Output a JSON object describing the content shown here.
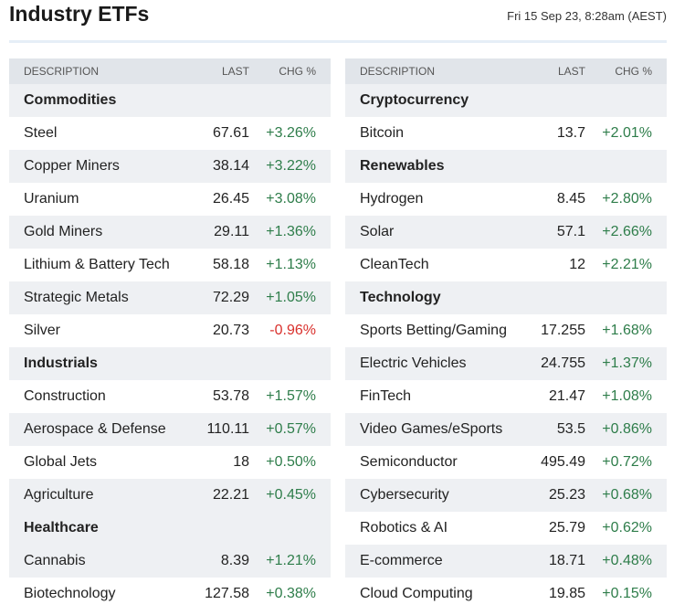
{
  "header": {
    "title": "Industry ETFs",
    "timestamp": "Fri 15 Sep 23, 8:28am (AEST)"
  },
  "tables": [
    {
      "columns": [
        "DESCRIPTION",
        "LAST",
        "CHG %"
      ],
      "sections": [
        {
          "name": "Commodities",
          "rows": [
            [
              "Steel",
              "67.61",
              "+3.26%"
            ],
            [
              "Copper Miners",
              "38.14",
              "+3.22%"
            ],
            [
              "Uranium",
              "26.45",
              "+3.08%"
            ],
            [
              "Gold Miners",
              "29.11",
              "+1.36%"
            ],
            [
              "Lithium & Battery Tech",
              "58.18",
              "+1.13%"
            ],
            [
              "Strategic Metals",
              "72.29",
              "+1.05%"
            ],
            [
              "Silver",
              "20.73",
              "-0.96%"
            ]
          ]
        },
        {
          "name": "Industrials",
          "rows": [
            [
              "Construction",
              "53.78",
              "+1.57%"
            ],
            [
              "Aerospace & Defense",
              "110.11",
              "+0.57%"
            ],
            [
              "Global Jets",
              "18",
              "+0.50%"
            ],
            [
              "Agriculture",
              "22.21",
              "+0.45%"
            ]
          ]
        },
        {
          "name": "Healthcare",
          "rows": [
            [
              "Cannabis",
              "8.39",
              "+1.21%"
            ],
            [
              "Biotechnology",
              "127.58",
              "+0.38%"
            ]
          ]
        }
      ]
    },
    {
      "columns": [
        "DESCRIPTION",
        "LAST",
        "CHG %"
      ],
      "sections": [
        {
          "name": "Cryptocurrency",
          "rows": [
            [
              "Bitcoin",
              "13.7",
              "+2.01%"
            ]
          ]
        },
        {
          "name": "Renewables",
          "rows": [
            [
              "Hydrogen",
              "8.45",
              "+2.80%"
            ],
            [
              "Solar",
              "57.1",
              "+2.66%"
            ],
            [
              "CleanTech",
              "12",
              "+2.21%"
            ]
          ]
        },
        {
          "name": "Technology",
          "rows": [
            [
              "Sports Betting/Gaming",
              "17.255",
              "+1.68%"
            ],
            [
              "Electric Vehicles",
              "24.755",
              "+1.37%"
            ],
            [
              "FinTech",
              "21.47",
              "+1.08%"
            ],
            [
              "Video Games/eSports",
              "53.5",
              "+0.86%"
            ],
            [
              "Semiconductor",
              "495.49",
              "+0.72%"
            ],
            [
              "Cybersecurity",
              "25.23",
              "+0.68%"
            ],
            [
              "Robotics & AI",
              "25.79",
              "+0.62%"
            ],
            [
              "E-commerce",
              "18.71",
              "+0.48%"
            ],
            [
              "Cloud Computing",
              "19.85",
              "+0.15%"
            ]
          ]
        }
      ]
    }
  ]
}
